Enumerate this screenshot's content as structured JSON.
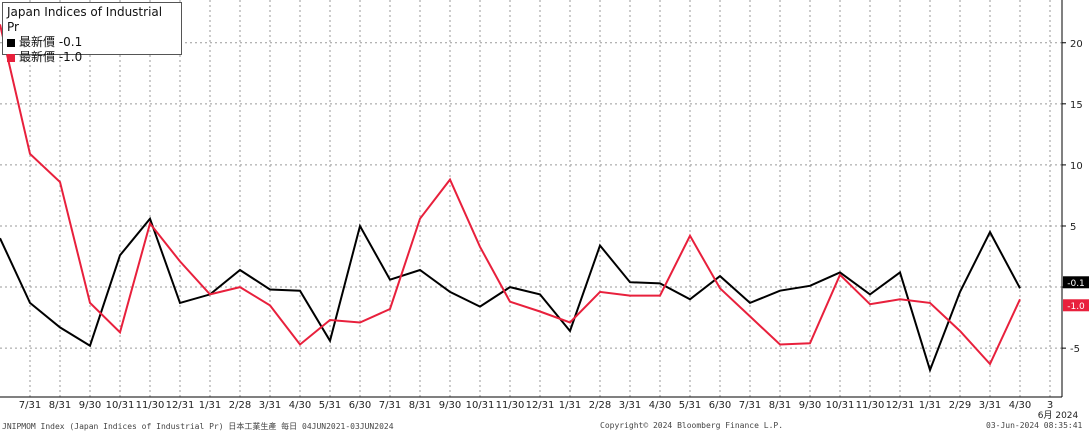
{
  "legend": {
    "title": "Japan Indices of Industrial Pr",
    "series": [
      {
        "label": "最新價 -0.1",
        "color": "#000000"
      },
      {
        "label": "最新價 -1.0",
        "color": "#e8203c"
      }
    ]
  },
  "footer": {
    "left": "JNIPMOM Index (Japan Indices of Industrial Pr) 日本工業生產  每日 04JUN2021-03JUN2024",
    "center": "Copyright© 2024 Bloomberg Finance L.P.",
    "right": "03-Jun-2024 08:35:41"
  },
  "chart_data": {
    "type": "line",
    "x": [
      "6/30",
      "7/31",
      "8/31",
      "9/30",
      "10/31",
      "11/30",
      "12/31",
      "1/31",
      "2/28",
      "3/31",
      "4/30",
      "5/31",
      "6/30",
      "7/31",
      "8/31",
      "9/30",
      "10/31",
      "11/30",
      "12/31",
      "1/31",
      "2/28",
      "3/31",
      "4/30",
      "5/31",
      "6/30",
      "7/31",
      "8/31",
      "9/30",
      "10/31",
      "11/30",
      "12/31",
      "1/31",
      "2/29",
      "3/31",
      "4/30"
    ],
    "x_tick_labels": [
      "7/31",
      "8/31",
      "9/30",
      "10/31",
      "11/30",
      "12/31",
      "1/31",
      "2/28",
      "3/31",
      "4/30",
      "5/31",
      "6/30",
      "7/31",
      "8/31",
      "9/30",
      "10/31",
      "11/30",
      "12/31",
      "1/31",
      "2/28",
      "3/31",
      "4/30",
      "5/31",
      "6/30",
      "7/31",
      "8/31",
      "9/30",
      "10/31",
      "11/30",
      "12/31",
      "1/31",
      "2/29",
      "3/31",
      "4/30",
      "3"
    ],
    "x_extra_label": "6月 2024",
    "series": [
      {
        "color": "#000000",
        "values": [
          4.0,
          -1.3,
          -3.3,
          -4.8,
          2.6,
          5.6,
          -1.3,
          -0.6,
          1.4,
          -0.2,
          -0.3,
          -4.4,
          5.0,
          0.6,
          1.4,
          -0.4,
          -1.6,
          0.0,
          -0.6,
          -3.6,
          3.4,
          0.4,
          0.3,
          -1.0,
          0.9,
          -1.3,
          -0.3,
          0.1,
          1.2,
          -0.6,
          1.2,
          -6.8,
          -0.4,
          4.5,
          -0.1
        ],
        "last_label": "-0.1"
      },
      {
        "color": "#e8203c",
        "values": [
          21.5,
          10.9,
          8.6,
          -1.3,
          -3.7,
          5.2,
          2.1,
          -0.6,
          0.0,
          -1.5,
          -4.7,
          -2.7,
          -2.9,
          -1.8,
          5.6,
          8.8,
          3.3,
          -1.2,
          -2.0,
          -2.9,
          -0.4,
          -0.7,
          -0.7,
          4.2,
          -0.1,
          -2.4,
          -4.7,
          -4.6,
          1.0,
          -1.4,
          -1.0,
          -1.3,
          -3.6,
          -6.3,
          -1.0
        ],
        "last_label": "-1.0"
      }
    ],
    "ylim": [
      -9,
      23.5
    ],
    "y_ticks": [
      -5,
      0,
      5,
      10,
      15,
      20
    ],
    "y_tick_labels": [
      "-5",
      "",
      "5",
      "10",
      "15",
      "20"
    ],
    "grid": true
  }
}
